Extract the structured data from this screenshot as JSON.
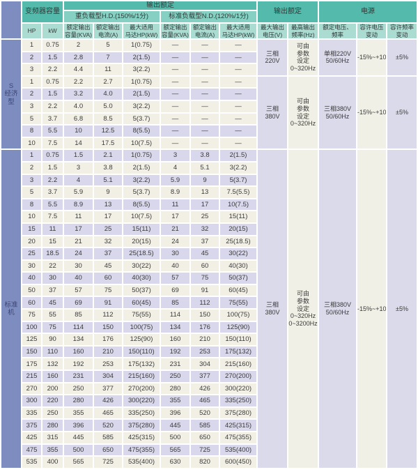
{
  "table": {
    "headers": {
      "inverter_capacity": "变频器容量",
      "output_rating": "输出额定",
      "hd_group": "重负载型H.D.(150%/1分)",
      "nd_group": "标准负载型N.D.(120%/1分)",
      "hp": "HP",
      "kw": "kW",
      "rated_output_capacity": "额定输出\n容量(KVA)",
      "rated_output_current": "额定输出\n电流(A)",
      "max_motor": "最大适用\n马达HP(kW)",
      "output_rating2": "输出额定",
      "max_output_voltage": "最大输出\n电压(V)",
      "max_output_freq": "最高输出\n频率(Hz)",
      "power_supply": "电源",
      "rated_voltage_freq": "额定电压、\n频率",
      "voltage_variation": "容许电压\n变动",
      "freq_variation": "容许频率\n变动"
    },
    "sections": [
      {
        "category": "S\n经济型",
        "lavender_rows": [
          1,
          4,
          7
        ],
        "blocks": [
          {
            "rows": [
              [
                "1",
                "0.75",
                "2",
                "5",
                "1(0.75)",
                "—",
                "—",
                "—"
              ],
              [
                "2",
                "1.5",
                "2.8",
                "7",
                "2(1.5)",
                "—",
                "—",
                "—"
              ],
              [
                "3",
                "2.2",
                "4.4",
                "11",
                "3(2.2)",
                "—",
                "—",
                "—"
              ]
            ],
            "merged": {
              "voltage": "三相\n220V",
              "frequency": "可由\n参数\n设定\n0~320Hz",
              "supply": "单相220V\n50/60Hz",
              "voltage_variation": "-15%~+10%",
              "frequency_variation": "±5%"
            }
          },
          {
            "rows": [
              [
                "1",
                "0.75",
                "2.2",
                "2.7",
                "1(0.75)",
                "—",
                "—",
                "—"
              ],
              [
                "2",
                "1.5",
                "3.2",
                "4.0",
                "2(1.5)",
                "—",
                "—",
                "—"
              ],
              [
                "3",
                "2.2",
                "4.0",
                "5.0",
                "3(2.2)",
                "—",
                "—",
                "—"
              ],
              [
                "5",
                "3.7",
                "6.8",
                "8.5",
                "5(3.7)",
                "—",
                "—",
                "—"
              ],
              [
                "8",
                "5.5",
                "10",
                "12.5",
                "8(5.5)",
                "—",
                "—",
                "—"
              ],
              [
                "10",
                "7.5",
                "14",
                "17.5",
                "10(7.5)",
                "—",
                "—",
                "—"
              ]
            ],
            "merged": {
              "voltage": "三相\n380V",
              "frequency": "可由\n参数\n设定\n0~320Hz",
              "supply": "三相380V\n50/60Hz",
              "voltage_variation": "-15%~+10%",
              "frequency_variation": "±5%"
            }
          }
        ]
      },
      {
        "category": "标准机",
        "lavender_rows": [
          0,
          2,
          4,
          6,
          8,
          10,
          12,
          14,
          16,
          18,
          20,
          22,
          24
        ],
        "blocks": [
          {
            "rows": [
              [
                "1",
                "0.75",
                "1.5",
                "2.1",
                "1(0.75)",
                "3",
                "3.8",
                "2(1.5)"
              ],
              [
                "2",
                "1.5",
                "3",
                "3.8",
                "2(1.5)",
                "4",
                "5.1",
                "3(2.2)"
              ],
              [
                "3",
                "2.2",
                "4",
                "5.1",
                "3(2.2)",
                "5.9",
                "9",
                "5(3.7)"
              ],
              [
                "5",
                "3.7",
                "5.9",
                "9",
                "5(3.7)",
                "8.9",
                "13",
                "7.5(5.5)"
              ],
              [
                "8",
                "5.5",
                "8.9",
                "13",
                "8(5.5)",
                "11",
                "17",
                "10(7.5)"
              ],
              [
                "10",
                "7.5",
                "11",
                "17",
                "10(7.5)",
                "17",
                "25",
                "15(11)"
              ],
              [
                "15",
                "11",
                "17",
                "25",
                "15(11)",
                "21",
                "32",
                "20(15)"
              ],
              [
                "20",
                "15",
                "21",
                "32",
                "20(15)",
                "24",
                "37",
                "25(18.5)"
              ],
              [
                "25",
                "18.5",
                "24",
                "37",
                "25(18.5)",
                "30",
                "45",
                "30(22)"
              ],
              [
                "30",
                "22",
                "30",
                "45",
                "30(22)",
                "40",
                "60",
                "40(30)"
              ],
              [
                "40",
                "30",
                "40",
                "60",
                "40(30)",
                "57",
                "75",
                "50(37)"
              ],
              [
                "50",
                "37",
                "57",
                "75",
                "50(37)",
                "69",
                "91",
                "60(45)"
              ],
              [
                "60",
                "45",
                "69",
                "91",
                "60(45)",
                "85",
                "112",
                "75(55)"
              ],
              [
                "75",
                "55",
                "85",
                "112",
                "75(55)",
                "114",
                "150",
                "100(75)"
              ],
              [
                "100",
                "75",
                "114",
                "150",
                "100(75)",
                "134",
                "176",
                "125(90)"
              ],
              [
                "125",
                "90",
                "134",
                "176",
                "125(90)",
                "160",
                "210",
                "150(110)"
              ],
              [
                "150",
                "110",
                "160",
                "210",
                "150(110)",
                "192",
                "253",
                "175(132)"
              ],
              [
                "175",
                "132",
                "192",
                "253",
                "175(132)",
                "231",
                "304",
                "215(160)"
              ],
              [
                "215",
                "160",
                "231",
                "304",
                "215(160)",
                "250",
                "377",
                "270(200)"
              ],
              [
                "270",
                "200",
                "250",
                "377",
                "270(200)",
                "280",
                "426",
                "300(220)"
              ],
              [
                "300",
                "220",
                "280",
                "426",
                "300(220)",
                "355",
                "465",
                "335(250)"
              ],
              [
                "335",
                "250",
                "355",
                "465",
                "335(250)",
                "396",
                "520",
                "375(280)"
              ],
              [
                "375",
                "280",
                "396",
                "520",
                "375(280)",
                "445",
                "585",
                "425(315)"
              ],
              [
                "425",
                "315",
                "445",
                "585",
                "425(315)",
                "500",
                "650",
                "475(355)"
              ],
              [
                "475",
                "355",
                "500",
                "650",
                "475(355)",
                "565",
                "725",
                "535(400)"
              ],
              [
                "535",
                "400",
                "565",
                "725",
                "535(400)",
                "630",
                "820",
                "600(450)"
              ]
            ],
            "merged": {
              "voltage": "三相\n380V",
              "frequency": "可由\n参数\n设定\n0~320Hz\n0~3200Hz",
              "supply": "三相380V\n50/60Hz",
              "voltage_variation": "-15%~+10%",
              "frequency_variation": "±5%"
            }
          }
        ]
      }
    ]
  },
  "colors": {
    "header_teal_dark": "#54bbac",
    "header_teal_mid": "#85d0c2",
    "header_teal_light": "#abdcd2",
    "category_blue": "#7e8dc0",
    "row_cream": "#f2f0e5",
    "row_lavender": "#d8d7eb"
  }
}
